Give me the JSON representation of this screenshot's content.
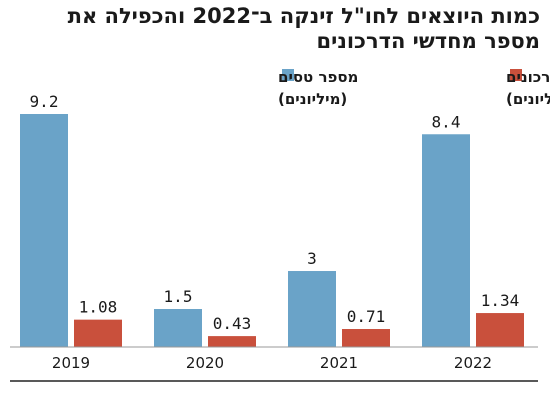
{
  "chart_data": {
    "type": "bar",
    "title": "כמות היוצאים לחו\"ל זינקה ב־2022 והכפילה את מספר מחדשי הדרכונים",
    "categories": [
      "2019",
      "2020",
      "2021",
      "2022"
    ],
    "series": [
      {
        "name": "מספר טסים",
        "unit": "(מיליונים)",
        "color": "#6aa3c8",
        "values": [
          9.2,
          1.5,
          3,
          8.4
        ]
      },
      {
        "name": "מספר מחדשי דרכונים",
        "unit": "(מיליונים)",
        "color": "#c9503c",
        "values": [
          1.08,
          0.43,
          0.71,
          1.34
        ]
      }
    ],
    "value_labels": [
      [
        "9.2",
        "1.5",
        "3",
        "8.4"
      ],
      [
        "1.08",
        "0.43",
        "0.71",
        "1.34"
      ]
    ],
    "ylim": [
      0,
      9.2
    ],
    "grid": false,
    "legend": "top"
  }
}
